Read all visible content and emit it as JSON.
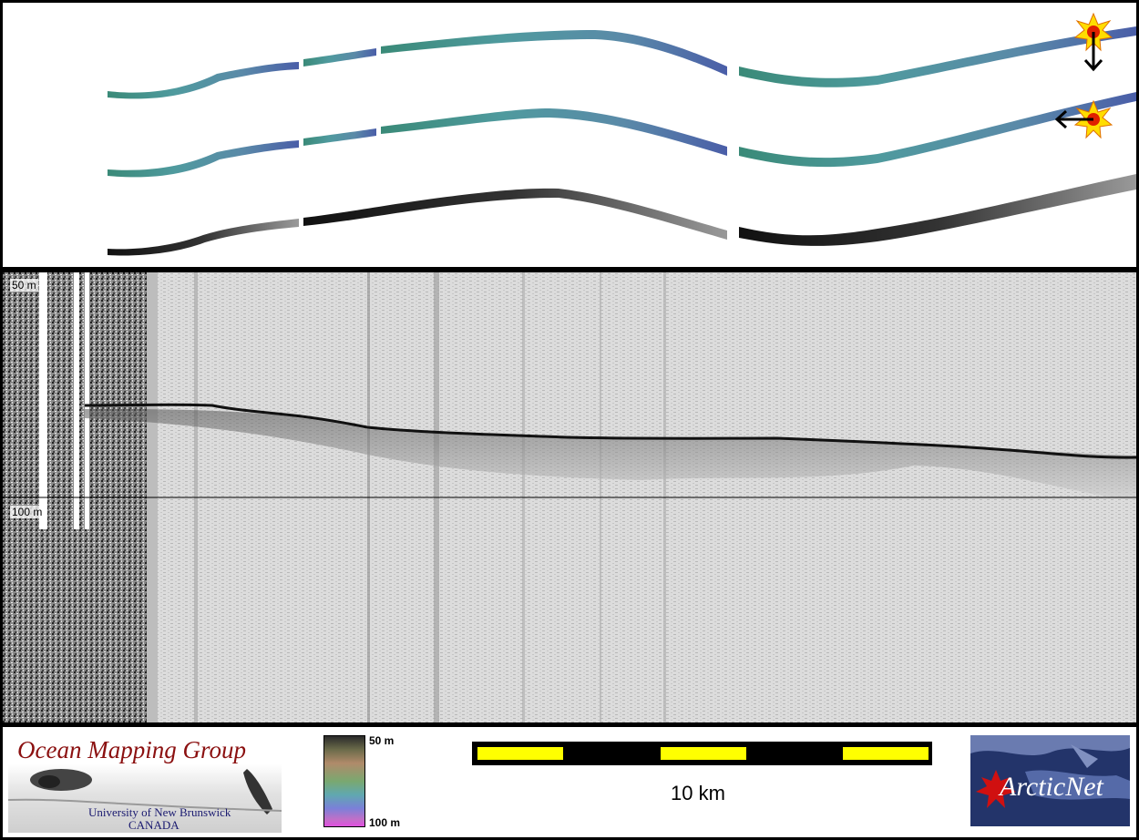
{
  "profile": {
    "depth_top_label": "50 m",
    "depth_bottom_label": "100 m"
  },
  "footer": {
    "logo": {
      "title": "Ocean Mapping Group",
      "subtitle_line1": "University of New Brunswick",
      "subtitle_line2": "CANADA"
    },
    "colorbar": {
      "top_label": "50 m",
      "bottom_label": "100 m"
    },
    "scale_bar": {
      "label": "10 km",
      "segments": 5,
      "colors": [
        "#ffff00",
        "#000000"
      ]
    },
    "arcticnet": {
      "text": "ArcticNet"
    }
  },
  "swaths": {
    "colors": [
      "#5f9aa8",
      "#5f9aa8",
      "#6a6a6a"
    ],
    "sun_icons": [
      "sun-icon",
      "sun-icon"
    ],
    "arrows": [
      "arrow-down-icon",
      "arrow-left-icon"
    ]
  }
}
